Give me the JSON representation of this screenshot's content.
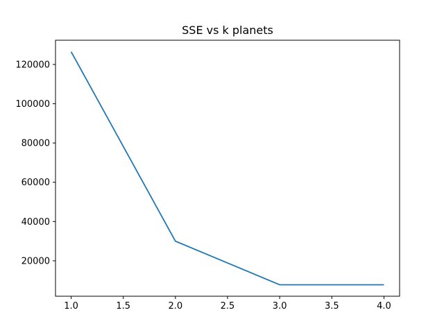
{
  "chart_data": {
    "type": "line",
    "title": "SSE vs k planets",
    "xlabel": "",
    "ylabel": "",
    "x": [
      1.0,
      2.0,
      3.0,
      4.0
    ],
    "series": [
      {
        "values": [
          126500,
          30000,
          7800,
          7800
        ],
        "color": "#1f77b4"
      }
    ],
    "xlim": [
      0.85,
      4.15
    ],
    "ylim": [
      1965,
      132335
    ],
    "xticks": [
      1.0,
      1.5,
      2.0,
      2.5,
      3.0,
      3.5,
      4.0
    ],
    "xtick_labels": [
      "1.0",
      "1.5",
      "2.0",
      "2.5",
      "3.0",
      "3.5",
      "4.0"
    ],
    "yticks": [
      20000,
      40000,
      60000,
      80000,
      100000,
      120000
    ],
    "ytick_labels": [
      "20000",
      "40000",
      "60000",
      "80000",
      "100000",
      "120000"
    ],
    "grid": false,
    "legend": "none"
  }
}
